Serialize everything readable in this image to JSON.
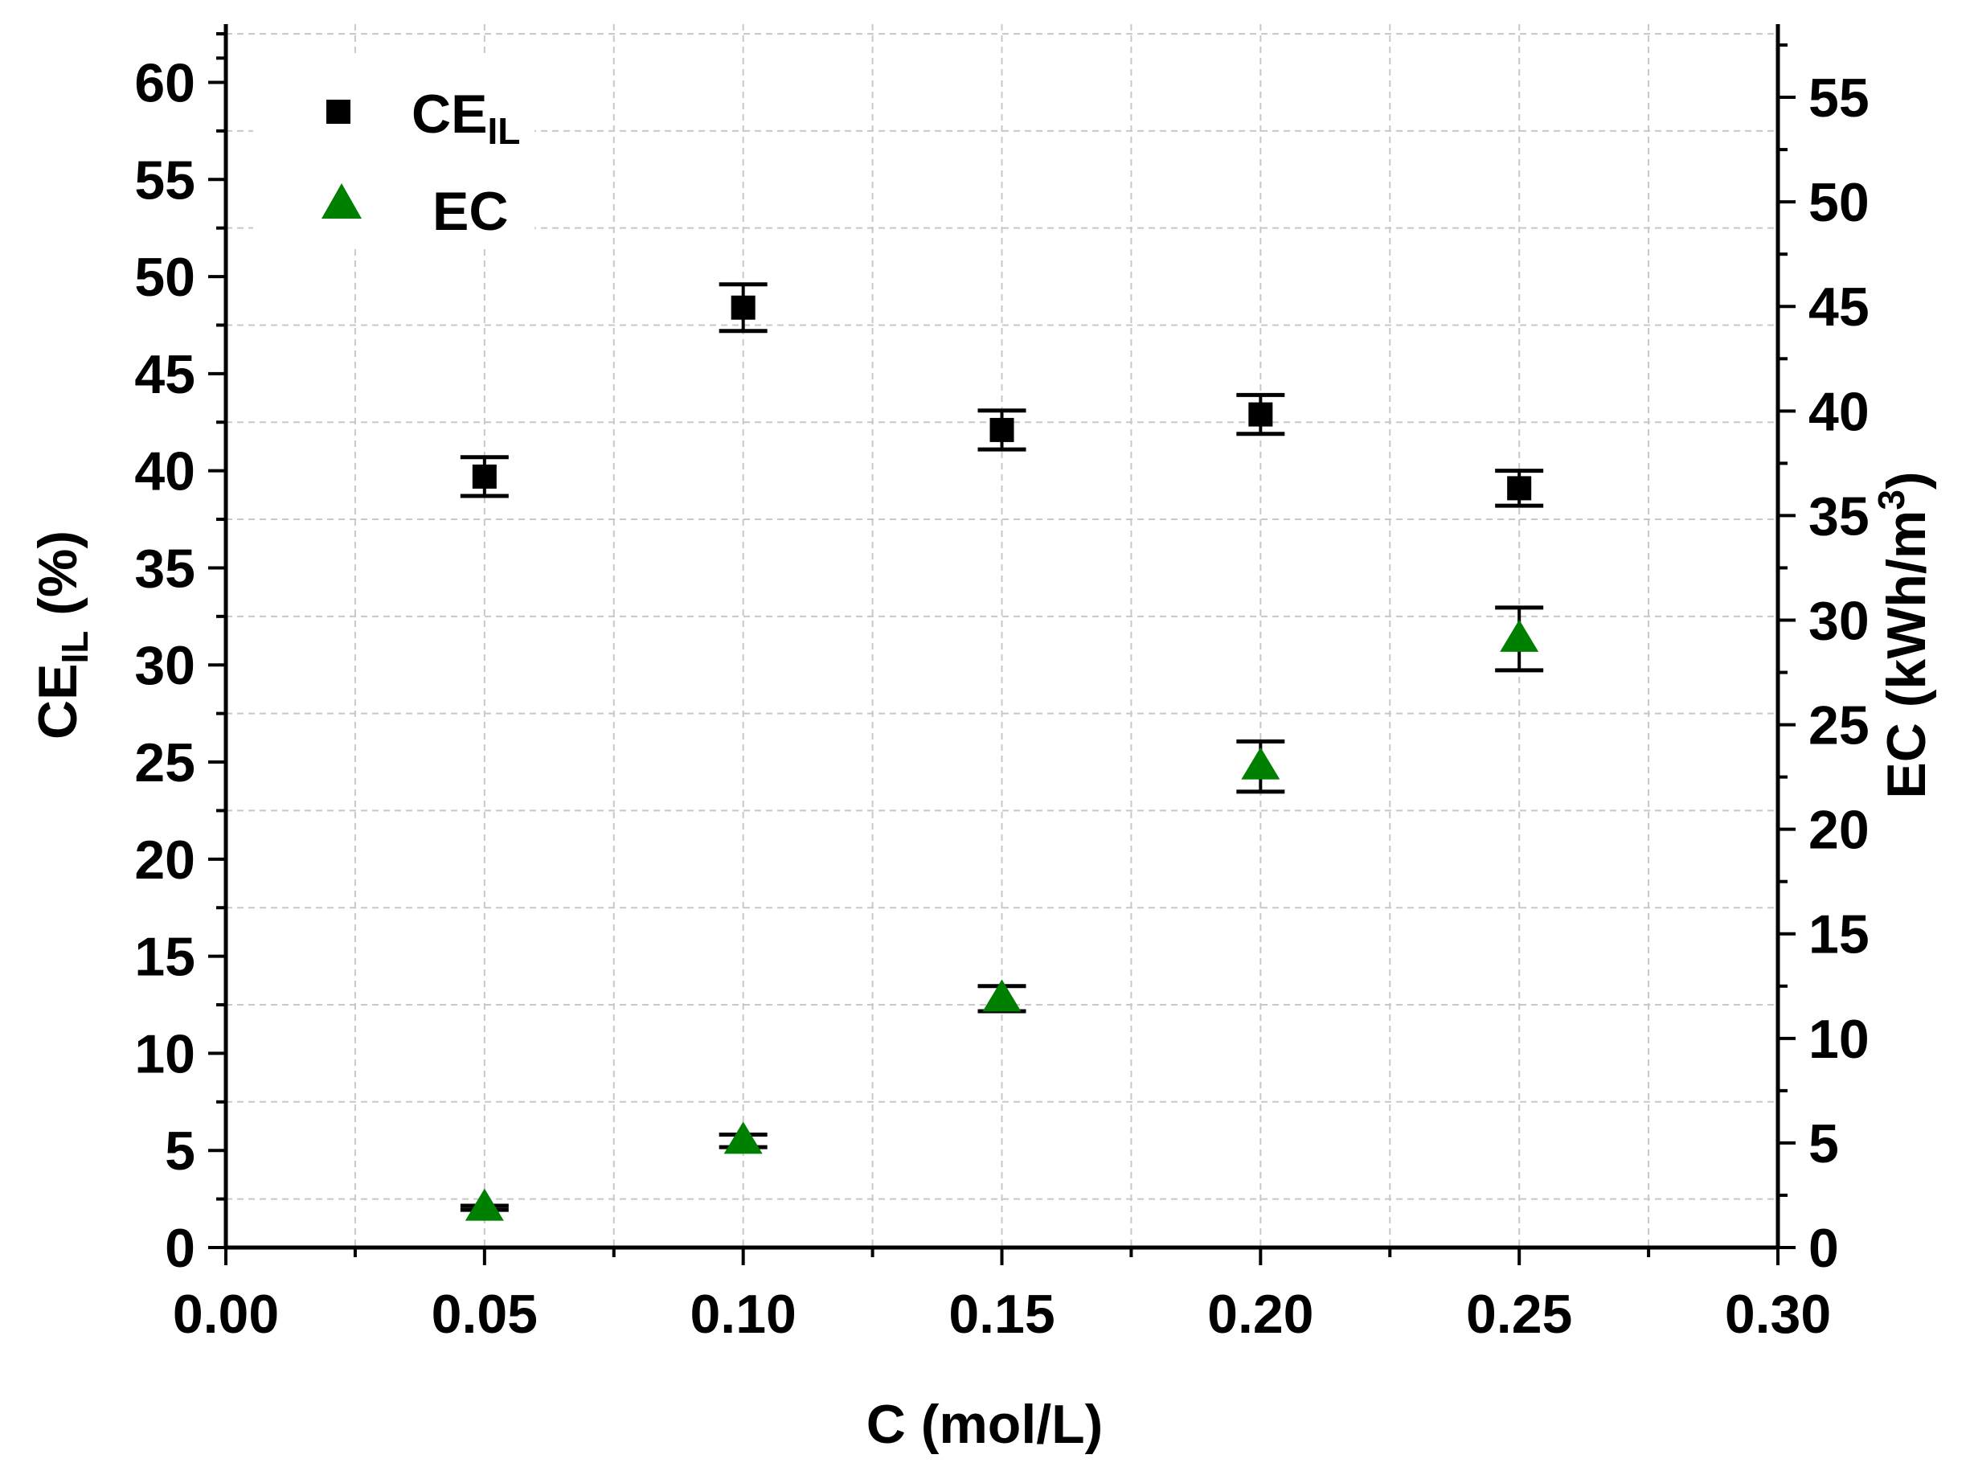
{
  "chart_data": {
    "type": "scatter",
    "xlabel": "C (mol/L)",
    "ylabel": {
      "base": "CE",
      "sub": "IL",
      "suffix": " (%)"
    },
    "y2label": {
      "base": "EC (kWh/m",
      "sup": "3",
      "suffix": ")"
    },
    "xlim": [
      0,
      0.3
    ],
    "ylim": [
      0,
      63
    ],
    "y2lim": [
      0,
      58.5
    ],
    "xticks": [
      "0.00",
      "0.05",
      "0.10",
      "0.15",
      "0.20",
      "0.25",
      "0.30"
    ],
    "yticks": [
      "0",
      "5",
      "10",
      "15",
      "20",
      "25",
      "30",
      "35",
      "40",
      "45",
      "50",
      "55",
      "60"
    ],
    "y2ticks": [
      "0",
      "5",
      "10",
      "15",
      "20",
      "25",
      "30",
      "35",
      "40",
      "45",
      "50",
      "55"
    ],
    "grid": true,
    "legend_position": "top-left",
    "series": [
      {
        "name": "CE",
        "name_sub": "IL",
        "axis": "left",
        "marker": "square",
        "color": "#000000",
        "x": [
          0.05,
          0.1,
          0.15,
          0.2,
          0.25
        ],
        "y": [
          39.7,
          48.4,
          42.1,
          42.9,
          39.1
        ],
        "err": [
          1.0,
          1.2,
          1.0,
          1.0,
          0.9
        ]
      },
      {
        "name": "EC",
        "axis": "right",
        "marker": "triangle",
        "color": "#008000",
        "x": [
          0.05,
          0.1,
          0.15,
          0.2,
          0.25
        ],
        "y": [
          1.9,
          5.1,
          11.9,
          23.0,
          29.1
        ],
        "err": [
          0.1,
          0.3,
          0.6,
          1.2,
          1.5
        ]
      }
    ]
  }
}
